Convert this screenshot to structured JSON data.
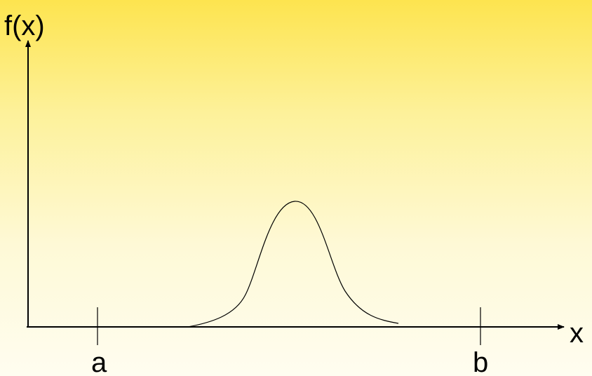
{
  "diagram": {
    "y_axis_label": "f(x)",
    "x_axis_label": "x",
    "ticks": [
      {
        "label": "a"
      },
      {
        "label": "b"
      }
    ],
    "colors": {
      "background_top": "#fde44f",
      "background_bottom": "#fffdf0",
      "ink": "#000000"
    }
  }
}
